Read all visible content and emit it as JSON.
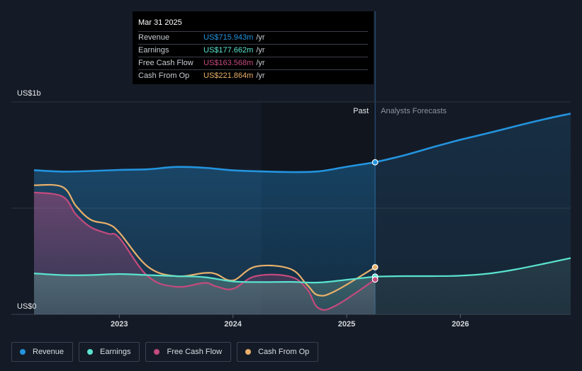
{
  "colors": {
    "background": "#151b26",
    "revenue": "#2394df",
    "earnings": "#5ae3cf",
    "fcf": "#c44a7d",
    "cfo": "#e8b06a"
  },
  "tooltip": {
    "date": "Mar 31 2025",
    "rows": [
      {
        "label": "Revenue",
        "value": "US$715.943m",
        "unit": "/yr",
        "color": "#2394df"
      },
      {
        "label": "Earnings",
        "value": "US$177.662m",
        "unit": "/yr",
        "color": "#5ae3cf"
      },
      {
        "label": "Free Cash Flow",
        "value": "US$163.568m",
        "unit": "/yr",
        "color": "#c44a7d"
      },
      {
        "label": "Cash From Op",
        "value": "US$221.864m",
        "unit": "/yr",
        "color": "#e8b06a"
      }
    ]
  },
  "legend": [
    {
      "label": "Revenue",
      "color": "#2394df"
    },
    {
      "label": "Earnings",
      "color": "#5ae3cf"
    },
    {
      "label": "Free Cash Flow",
      "color": "#c44a7d"
    },
    {
      "label": "Cash From Op",
      "color": "#e8b06a"
    }
  ],
  "chart_data": {
    "type": "line",
    "title": "",
    "ylabel_top": "US$1b",
    "ylabel_bottom": "US$0",
    "ylim": [
      0,
      1000
    ],
    "xlim": [
      2022.25,
      2026.97
    ],
    "x_ticks": [
      {
        "value": 2023.0,
        "label": "2023"
      },
      {
        "value": 2024.0,
        "label": "2024"
      },
      {
        "value": 2025.0,
        "label": "2025"
      },
      {
        "value": 2026.0,
        "label": "2026"
      }
    ],
    "gridlines": [
      0,
      500,
      1000
    ],
    "past_label": "Past",
    "forecast_label": "Analysts Forecasts",
    "past_start": 2024.25,
    "past_end": 2025.25,
    "series": [
      {
        "name": "Revenue",
        "color": "#2394df",
        "fill": true,
        "points": [
          [
            2022.25,
            679
          ],
          [
            2022.5,
            672
          ],
          [
            2022.75,
            675
          ],
          [
            2023.0,
            680
          ],
          [
            2023.25,
            683
          ],
          [
            2023.5,
            694
          ],
          [
            2023.75,
            690
          ],
          [
            2024.0,
            678
          ],
          [
            2024.25,
            673
          ],
          [
            2024.5,
            670
          ],
          [
            2024.75,
            673
          ],
          [
            2025.0,
            695
          ],
          [
            2025.25,
            716
          ]
        ],
        "forecast": [
          [
            2025.25,
            716
          ],
          [
            2025.5,
            748
          ],
          [
            2025.75,
            786
          ],
          [
            2026.0,
            822
          ],
          [
            2026.25,
            854
          ],
          [
            2026.5,
            888
          ],
          [
            2026.75,
            920
          ],
          [
            2026.97,
            945
          ]
        ]
      },
      {
        "name": "Earnings",
        "color": "#5ae3cf",
        "fill": true,
        "points": [
          [
            2022.25,
            193
          ],
          [
            2022.5,
            185
          ],
          [
            2022.75,
            185
          ],
          [
            2023.0,
            190
          ],
          [
            2023.25,
            185
          ],
          [
            2023.5,
            180
          ],
          [
            2023.75,
            175
          ],
          [
            2024.0,
            155
          ],
          [
            2024.25,
            152
          ],
          [
            2024.5,
            153
          ],
          [
            2024.75,
            150
          ],
          [
            2025.0,
            163
          ],
          [
            2025.25,
            178
          ]
        ],
        "forecast": [
          [
            2025.25,
            178
          ],
          [
            2025.5,
            180
          ],
          [
            2025.75,
            180
          ],
          [
            2026.0,
            182
          ],
          [
            2026.25,
            192
          ],
          [
            2026.5,
            213
          ],
          [
            2026.75,
            240
          ],
          [
            2026.97,
            265
          ]
        ]
      },
      {
        "name": "Free Cash Flow",
        "color": "#c44a7d",
        "fill": true,
        "points": [
          [
            2022.25,
            574
          ],
          [
            2022.5,
            555
          ],
          [
            2022.62,
            470
          ],
          [
            2022.75,
            410
          ],
          [
            2022.9,
            380
          ],
          [
            2023.0,
            360
          ],
          [
            2023.25,
            180
          ],
          [
            2023.5,
            130
          ],
          [
            2023.75,
            148
          ],
          [
            2023.85,
            132
          ],
          [
            2024.0,
            120
          ],
          [
            2024.2,
            180
          ],
          [
            2024.5,
            178
          ],
          [
            2024.65,
            120
          ],
          [
            2024.75,
            30
          ],
          [
            2024.9,
            40
          ],
          [
            2025.25,
            164
          ]
        ]
      },
      {
        "name": "Cash From Op",
        "color": "#e8b06a",
        "fill": false,
        "points": [
          [
            2022.25,
            608
          ],
          [
            2022.5,
            600
          ],
          [
            2022.62,
            510
          ],
          [
            2022.75,
            445
          ],
          [
            2022.9,
            425
          ],
          [
            2023.0,
            385
          ],
          [
            2023.25,
            225
          ],
          [
            2023.5,
            180
          ],
          [
            2023.75,
            195
          ],
          [
            2023.85,
            190
          ],
          [
            2024.0,
            160
          ],
          [
            2024.2,
            225
          ],
          [
            2024.5,
            215
          ],
          [
            2024.65,
            140
          ],
          [
            2024.75,
            90
          ],
          [
            2024.9,
            110
          ],
          [
            2025.25,
            222
          ]
        ]
      }
    ]
  }
}
